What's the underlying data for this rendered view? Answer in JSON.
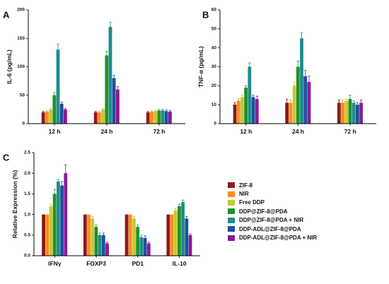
{
  "chart_data": [
    {
      "panel": "A",
      "type": "bar",
      "ylabel": "IL-6 (pg/mL)",
      "xlabel": "",
      "ylim": [
        0,
        200
      ],
      "yticks": [
        "0",
        "50",
        "100",
        "150",
        "200"
      ],
      "categories": [
        "12 h",
        "24 h",
        "72 h"
      ],
      "series": [
        {
          "name": "ZIF-8",
          "values": [
            20,
            20,
            20
          ],
          "errors": [
            1.5,
            1.5,
            1.5
          ]
        },
        {
          "name": "NIR",
          "values": [
            21,
            20,
            21
          ],
          "errors": [
            1.5,
            1.5,
            1.5
          ]
        },
        {
          "name": "Free DDP",
          "values": [
            25,
            25,
            22
          ],
          "errors": [
            2,
            2,
            1.5
          ]
        },
        {
          "name": "DDP@ZIF-8@PDA",
          "values": [
            50,
            120,
            23
          ],
          "errors": [
            5,
            7,
            2
          ]
        },
        {
          "name": "DDP@ZIF-8@PDA + NIR",
          "values": [
            130,
            170,
            23
          ],
          "errors": [
            10,
            8,
            2
          ]
        },
        {
          "name": "DDP-ADL@ZIF-8@PDA",
          "values": [
            35,
            80,
            22
          ],
          "errors": [
            3,
            5,
            2
          ]
        },
        {
          "name": "DDP-ADL@ZIF-8@PDA + NIR",
          "values": [
            25,
            60,
            21
          ],
          "errors": [
            2,
            5,
            2
          ]
        }
      ]
    },
    {
      "panel": "B",
      "type": "bar",
      "ylabel": "TNF-α (pg/mL)",
      "xlabel": "",
      "ylim": [
        0,
        60
      ],
      "yticks": [
        "0",
        "10",
        "20",
        "30",
        "40",
        "50",
        "60"
      ],
      "categories": [
        "12 h",
        "24 h",
        "72 h"
      ],
      "series": [
        {
          "name": "ZIF-8",
          "values": [
            10,
            11,
            11
          ],
          "errors": [
            1,
            2,
            1.5
          ]
        },
        {
          "name": "NIR",
          "values": [
            12,
            11,
            11
          ],
          "errors": [
            1,
            1.5,
            1.5
          ]
        },
        {
          "name": "Free DDP",
          "values": [
            14,
            20,
            12
          ],
          "errors": [
            1,
            2,
            1
          ]
        },
        {
          "name": "DDP@ZIF-8@PDA",
          "values": [
            19,
            30,
            13
          ],
          "errors": [
            1,
            3,
            2
          ]
        },
        {
          "name": "DDP@ZIF-8@PDA + NIR",
          "values": [
            30,
            45,
            11
          ],
          "errors": [
            2,
            3,
            1
          ]
        },
        {
          "name": "DDP-ADL@ZIF-8@PDA",
          "values": [
            14,
            25,
            10
          ],
          "errors": [
            1,
            3,
            1
          ]
        },
        {
          "name": "DDP-ADL@ZIF-8@PDA + NIR",
          "values": [
            13,
            22,
            11
          ],
          "errors": [
            1.5,
            3,
            1.5
          ]
        }
      ]
    },
    {
      "panel": "C",
      "type": "bar",
      "ylabel": "Relative Expression (%)",
      "xlabel": "",
      "ylim": [
        0,
        2.5
      ],
      "yticks": [
        "0.0",
        "0.5",
        "1.0",
        "1.5",
        "2.0",
        "2.5"
      ],
      "categories": [
        "IFNγ",
        "FOXP3",
        "PD1",
        "IL-10"
      ],
      "series": [
        {
          "name": "ZIF-8",
          "values": [
            1.0,
            1.0,
            1.0,
            1.0
          ],
          "errors": [
            0,
            0,
            0,
            0
          ]
        },
        {
          "name": "NIR",
          "values": [
            1.0,
            1.0,
            1.0,
            1.0
          ],
          "errors": [
            0,
            0,
            0,
            0
          ]
        },
        {
          "name": "Free DDP",
          "values": [
            1.2,
            0.9,
            0.9,
            1.1
          ],
          "errors": [
            0.05,
            0.05,
            0.05,
            0.05
          ]
        },
        {
          "name": "DDP@ZIF-8@PDA",
          "values": [
            1.5,
            0.7,
            0.7,
            1.2
          ],
          "errors": [
            0.1,
            0.05,
            0.05,
            0.05
          ]
        },
        {
          "name": "DDP@ZIF-8@PDA + NIR",
          "values": [
            1.8,
            0.5,
            0.45,
            1.3
          ],
          "errors": [
            0.05,
            0.05,
            0.05,
            0.05
          ]
        },
        {
          "name": "DDP-ADL@ZIF-8@PDA",
          "values": [
            1.7,
            0.5,
            0.43,
            0.9
          ],
          "errors": [
            0.1,
            0.05,
            0.05,
            0.05
          ]
        },
        {
          "name": "DDP-ADL@ZIF-8@PDA + NIR",
          "values": [
            2.0,
            0.3,
            0.3,
            0.5
          ],
          "errors": [
            0.2,
            0.03,
            0.03,
            0.03
          ]
        }
      ]
    }
  ],
  "colors": [
    "#8b1a1a",
    "#ff8c1a",
    "#c8c832",
    "#23912a",
    "#1f8c8c",
    "#1f4f9a",
    "#8a1a9a"
  ],
  "panel_letters": [
    "A",
    "B",
    "C"
  ]
}
